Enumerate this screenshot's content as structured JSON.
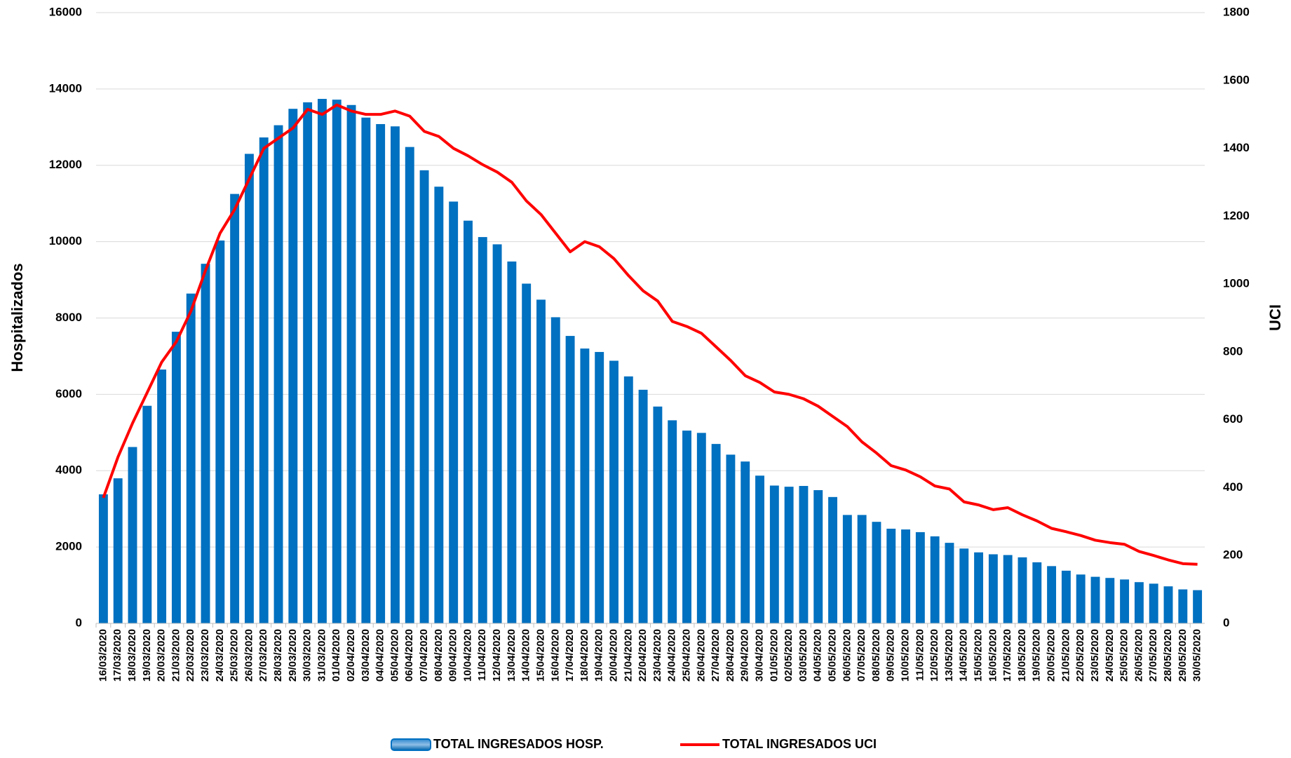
{
  "chart_data": {
    "type": "bar",
    "y_label": "Hospitalizados",
    "y2_label": "UCI",
    "categories": [
      "16/03/2020",
      "17/03/2020",
      "18/03/2020",
      "19/03/2020",
      "20/03/2020",
      "21/03/2020",
      "22/03/2020",
      "23/03/2020",
      "24/03/2020",
      "25/03/2020",
      "26/03/2020",
      "27/03/2020",
      "28/03/2020",
      "29/03/2020",
      "30/03/2020",
      "31/03/2020",
      "01/04/2020",
      "02/04/2020",
      "03/04/2020",
      "04/04/2020",
      "05/04/2020",
      "06/04/2020",
      "07/04/2020",
      "08/04/2020",
      "09/04/2020",
      "10/04/2020",
      "11/04/2020",
      "12/04/2020",
      "13/04/2020",
      "14/04/2020",
      "15/04/2020",
      "16/04/2020",
      "17/04/2020",
      "18/04/2020",
      "19/04/2020",
      "20/04/2020",
      "21/04/2020",
      "22/04/2020",
      "23/04/2020",
      "24/04/2020",
      "25/04/2020",
      "26/04/2020",
      "27/04/2020",
      "28/04/2020",
      "29/04/2020",
      "30/04/2020",
      "01/05/2020",
      "02/05/2020",
      "03/05/2020",
      "04/05/2020",
      "05/05/2020",
      "06/05/2020",
      "07/05/2020",
      "08/05/2020",
      "09/05/2020",
      "10/05/2020",
      "11/05/2020",
      "12/05/2020",
      "13/05/2020",
      "14/05/2020",
      "15/05/2020",
      "16/05/2020",
      "17/05/2020",
      "18/05/2020",
      "19/05/2020",
      "20/05/2020",
      "21/05/2020",
      "22/05/2020",
      "23/05/2020",
      "24/05/2020",
      "25/05/2020",
      "26/05/2020",
      "27/05/2020",
      "28/05/2020",
      "29/05/2020",
      "30/05/2020"
    ],
    "series": [
      {
        "name": "TOTAL INGRESADOS HOSP.",
        "type": "bar",
        "color": "#0070c0",
        "values": [
          3380,
          3800,
          4620,
          5700,
          6650,
          7640,
          8640,
          9420,
          10030,
          11250,
          12300,
          12730,
          13050,
          13480,
          13650,
          13740,
          13720,
          13580,
          13250,
          13080,
          13020,
          12480,
          11870,
          11440,
          11050,
          10550,
          10120,
          9930,
          9480,
          8900,
          8480,
          8020,
          7530,
          7200,
          7110,
          6880,
          6470,
          6120,
          5680,
          5320,
          5050,
          4990,
          4700,
          4420,
          4240,
          3870,
          3610,
          3580,
          3600,
          3490,
          3310,
          2840,
          2840,
          2660,
          2480,
          2460,
          2390,
          2280,
          2110,
          1960,
          1860,
          1810,
          1790,
          1730,
          1600,
          1500,
          1380,
          1280,
          1220,
          1190,
          1150,
          1080,
          1040,
          970,
          890,
          870
        ]
      },
      {
        "name": "TOTAL INGRESADOS UCI",
        "type": "line",
        "axis": "y2",
        "color": "#ff0000",
        "values": [
          370,
          490,
          590,
          680,
          770,
          830,
          920,
          1040,
          1150,
          1220,
          1310,
          1400,
          1430,
          1460,
          1515,
          1500,
          1528,
          1510,
          1500,
          1500,
          1510,
          1495,
          1450,
          1435,
          1400,
          1378,
          1352,
          1330,
          1300,
          1245,
          1205,
          1150,
          1095,
          1125,
          1110,
          1075,
          1025,
          980,
          950,
          890,
          875,
          855,
          815,
          775,
          730,
          710,
          682,
          675,
          662,
          640,
          610,
          580,
          535,
          502,
          465,
          452,
          432,
          405,
          396,
          358,
          349,
          335,
          341,
          320,
          302,
          280,
          270,
          259,
          245,
          238,
          233,
          212,
          200,
          187,
          176,
          174
        ]
      }
    ],
    "ylim": [
      0,
      16000
    ],
    "yticks": [
      0,
      2000,
      4000,
      6000,
      8000,
      10000,
      12000,
      14000,
      16000
    ],
    "y2lim": [
      0,
      1800
    ],
    "y2ticks": [
      0,
      200,
      400,
      600,
      800,
      1000,
      1200,
      1400,
      1600,
      1800
    ],
    "grid": true,
    "legend": "bottom"
  }
}
